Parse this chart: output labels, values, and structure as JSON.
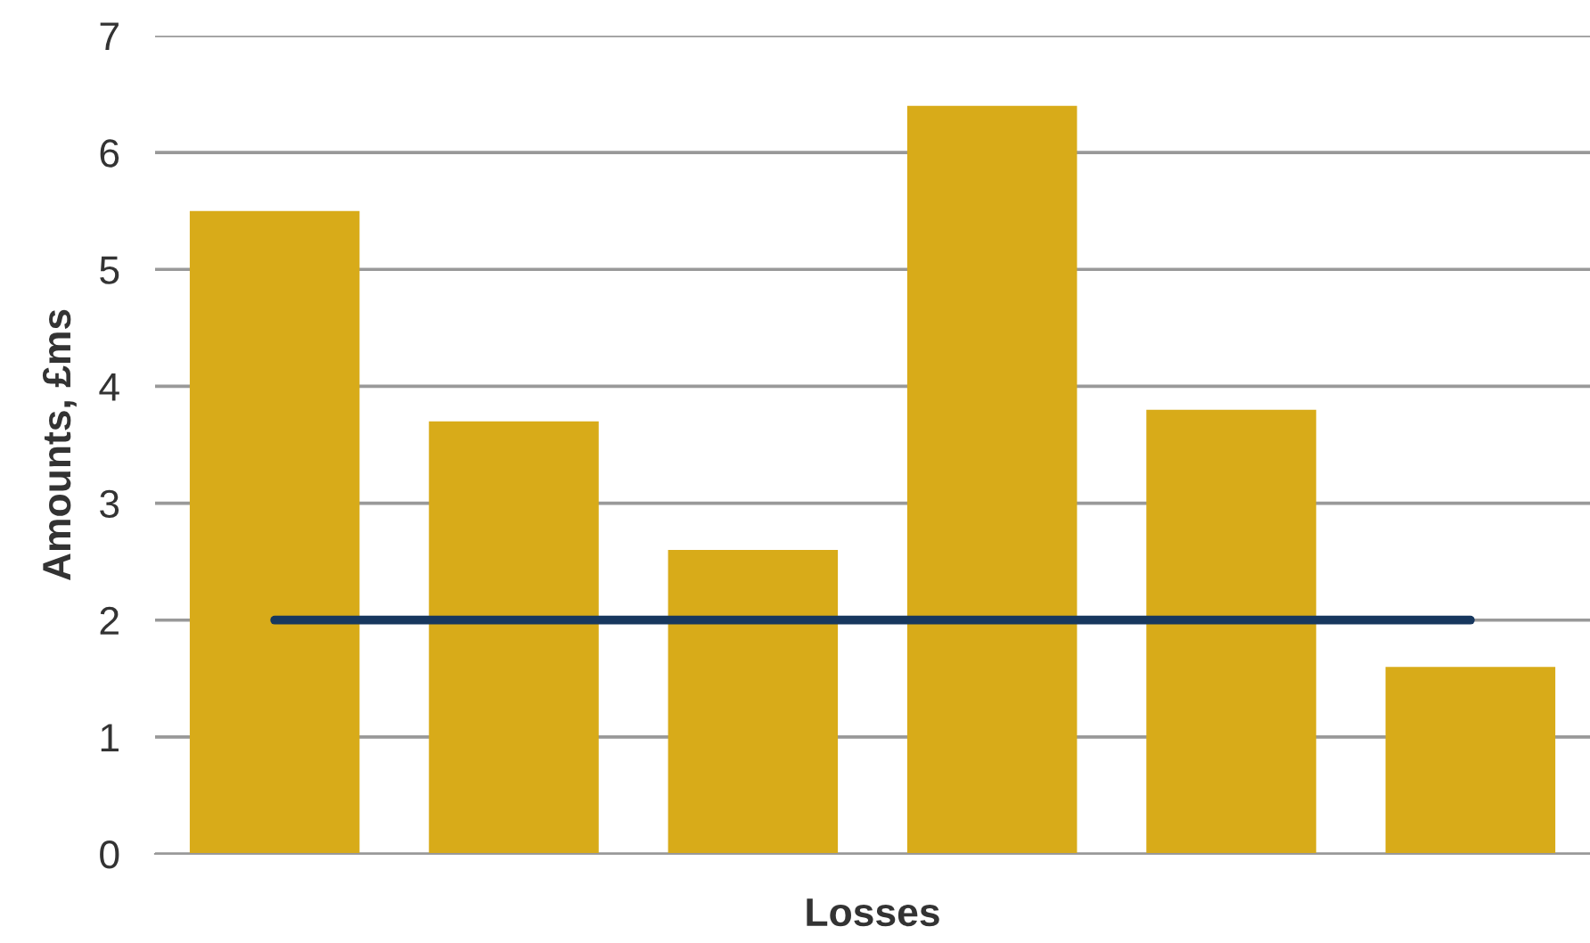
{
  "chart_data": {
    "type": "bar",
    "xlabel": "Losses",
    "ylabel": "Amounts, £ms",
    "categories": [
      null,
      null,
      null,
      null,
      null,
      null
    ],
    "series": [
      {
        "color": "#d8ab19",
        "values": [
          5.5,
          3.7,
          2.6,
          6.4,
          3.8,
          1.6
        ]
      },
      {
        "type": "line",
        "color": "#17375e",
        "values": [
          2,
          2,
          2,
          2,
          2,
          2
        ]
      }
    ],
    "ylim": [
      0,
      7
    ],
    "yticks": [
      0,
      1,
      2,
      3,
      4,
      5,
      6,
      7
    ],
    "grid": "y",
    "marker": "none",
    "line_style": "solid"
  }
}
